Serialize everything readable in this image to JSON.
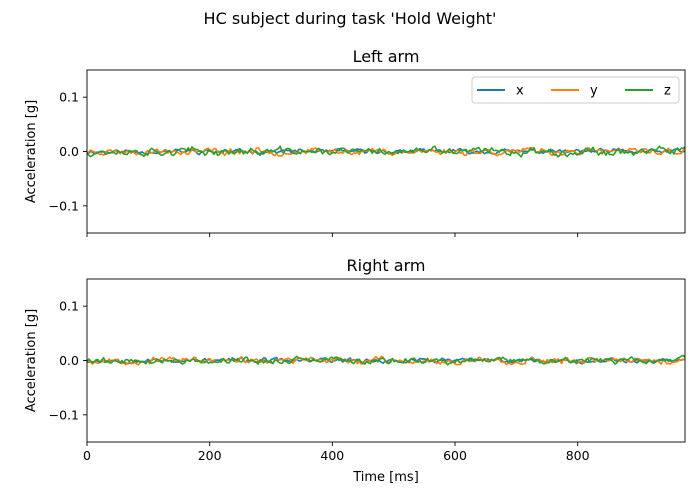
{
  "figure": {
    "suptitle": "HC subject during task 'Hold Weight'"
  },
  "chart_data": [
    {
      "type": "line",
      "title": "Left arm",
      "xlabel": "",
      "ylabel": "Acceleration [g]",
      "xlim": [
        0,
        975
      ],
      "ylim": [
        -0.15,
        0.15
      ],
      "x_ticks": [
        0,
        200,
        400,
        600,
        800
      ],
      "x_tick_labels": [
        "",
        "",
        "",
        "",
        ""
      ],
      "y_ticks": [
        0.1,
        0.0,
        -0.1
      ],
      "y_tick_labels": [
        "0.1",
        "0.0",
        "−0.1"
      ],
      "grid": false,
      "legend": {
        "placement": "top-right",
        "columns": 3,
        "entries": [
          "x",
          "y",
          "z"
        ]
      },
      "x_sampling": {
        "start": 0,
        "step": 3,
        "count": 326
      },
      "series": [
        {
          "name": "x",
          "color": "#1f77b4",
          "noise_amplitude": 0.004,
          "seed": 11
        },
        {
          "name": "y",
          "color": "#ff7f0e",
          "noise_amplitude": 0.006,
          "seed": 23
        },
        {
          "name": "z",
          "color": "#2ca02c",
          "noise_amplitude": 0.007,
          "seed": 37
        }
      ]
    },
    {
      "type": "line",
      "title": "Right arm",
      "xlabel": "Time [ms]",
      "ylabel": "Acceleration [g]",
      "xlim": [
        0,
        975
      ],
      "ylim": [
        -0.15,
        0.15
      ],
      "x_ticks": [
        0,
        200,
        400,
        600,
        800
      ],
      "x_tick_labels": [
        "0",
        "200",
        "400",
        "600",
        "800"
      ],
      "y_ticks": [
        0.1,
        0.0,
        -0.1
      ],
      "y_tick_labels": [
        "0.1",
        "0.0",
        "−0.1"
      ],
      "grid": false,
      "x_sampling": {
        "start": 0,
        "step": 3,
        "count": 326
      },
      "series": [
        {
          "name": "x",
          "color": "#1f77b4",
          "noise_amplitude": 0.004,
          "seed": 53
        },
        {
          "name": "y",
          "color": "#ff7f0e",
          "noise_amplitude": 0.006,
          "seed": 67
        },
        {
          "name": "z",
          "color": "#2ca02c",
          "noise_amplitude": 0.006,
          "seed": 79
        }
      ]
    }
  ]
}
